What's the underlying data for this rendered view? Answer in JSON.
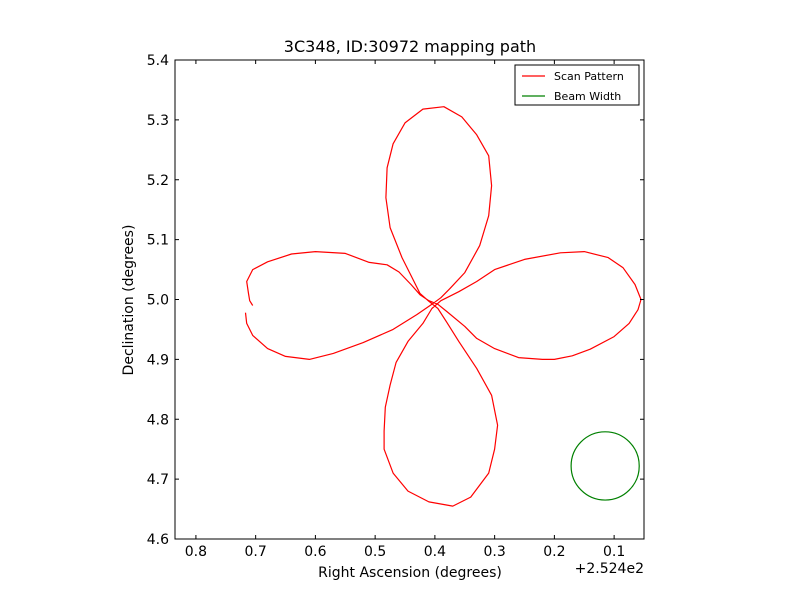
{
  "chart_data": {
    "type": "line",
    "title": "3C348, ID:30972 mapping path",
    "xlabel": "Right Ascension (degrees)",
    "ylabel": "Declination (degrees)",
    "x_offset_label": "+2.524e2",
    "xlim": [
      0.835,
      0.05
    ],
    "ylim": [
      4.6,
      5.4
    ],
    "x_ticks": [
      0.8,
      0.7,
      0.6,
      0.5,
      0.4,
      0.3,
      0.2,
      0.1
    ],
    "x_tick_labels": [
      "0.8",
      "0.7",
      "0.6",
      "0.5",
      "0.4",
      "0.3",
      "0.2",
      "0.1"
    ],
    "y_ticks": [
      4.6,
      4.7,
      4.8,
      4.9,
      5.0,
      5.1,
      5.2,
      5.3,
      5.4
    ],
    "y_tick_labels": [
      "4.6",
      "4.7",
      "4.8",
      "4.9",
      "5.0",
      "5.1",
      "5.2",
      "5.3",
      "5.4"
    ],
    "grid": false,
    "legend_position": "top-right",
    "series": [
      {
        "name": "Scan Pattern",
        "color": "#ff0000",
        "points": [
          [
            0.705,
            4.99
          ],
          [
            0.71,
            4.998
          ],
          [
            0.712,
            5.01
          ],
          [
            0.715,
            5.03
          ],
          [
            0.705,
            5.05
          ],
          [
            0.68,
            5.063
          ],
          [
            0.64,
            5.076
          ],
          [
            0.6,
            5.08
          ],
          [
            0.55,
            5.077
          ],
          [
            0.51,
            5.062
          ],
          [
            0.48,
            5.058
          ],
          [
            0.46,
            5.046
          ],
          [
            0.44,
            5.025
          ],
          [
            0.425,
            5.008
          ],
          [
            0.41,
            4.998
          ],
          [
            0.395,
            4.992
          ],
          [
            0.38,
            4.98
          ],
          [
            0.35,
            4.955
          ],
          [
            0.33,
            4.935
          ],
          [
            0.3,
            4.918
          ],
          [
            0.26,
            4.903
          ],
          [
            0.22,
            4.9
          ],
          [
            0.2,
            4.9
          ],
          [
            0.17,
            4.906
          ],
          [
            0.14,
            4.917
          ],
          [
            0.1,
            4.938
          ],
          [
            0.075,
            4.96
          ],
          [
            0.06,
            4.983
          ],
          [
            0.055,
            5.0
          ],
          [
            0.065,
            5.025
          ],
          [
            0.085,
            5.053
          ],
          [
            0.11,
            5.07
          ],
          [
            0.15,
            5.08
          ],
          [
            0.19,
            5.078
          ],
          [
            0.25,
            5.067
          ],
          [
            0.3,
            5.05
          ],
          [
            0.33,
            5.03
          ],
          [
            0.36,
            5.013
          ],
          [
            0.39,
            4.998
          ],
          [
            0.405,
            4.985
          ],
          [
            0.42,
            4.96
          ],
          [
            0.445,
            4.93
          ],
          [
            0.465,
            4.895
          ],
          [
            0.475,
            4.857
          ],
          [
            0.483,
            4.82
          ],
          [
            0.485,
            4.78
          ],
          [
            0.485,
            4.75
          ],
          [
            0.47,
            4.71
          ],
          [
            0.445,
            4.68
          ],
          [
            0.41,
            4.662
          ],
          [
            0.37,
            4.655
          ],
          [
            0.34,
            4.67
          ],
          [
            0.31,
            4.71
          ],
          [
            0.3,
            4.75
          ],
          [
            0.295,
            4.79
          ],
          [
            0.305,
            4.84
          ],
          [
            0.33,
            4.885
          ],
          [
            0.36,
            4.93
          ],
          [
            0.38,
            4.962
          ],
          [
            0.395,
            4.985
          ],
          [
            0.41,
            4.997
          ],
          [
            0.425,
            5.01
          ],
          [
            0.44,
            5.04
          ],
          [
            0.455,
            5.07
          ],
          [
            0.475,
            5.12
          ],
          [
            0.482,
            5.17
          ],
          [
            0.48,
            5.22
          ],
          [
            0.47,
            5.26
          ],
          [
            0.45,
            5.295
          ],
          [
            0.42,
            5.318
          ],
          [
            0.385,
            5.322
          ],
          [
            0.355,
            5.305
          ],
          [
            0.33,
            5.275
          ],
          [
            0.31,
            5.24
          ],
          [
            0.305,
            5.19
          ],
          [
            0.31,
            5.14
          ],
          [
            0.325,
            5.09
          ],
          [
            0.35,
            5.045
          ],
          [
            0.375,
            5.018
          ],
          [
            0.39,
            5.003
          ],
          [
            0.405,
            4.992
          ],
          [
            0.43,
            4.975
          ],
          [
            0.47,
            4.95
          ],
          [
            0.52,
            4.928
          ],
          [
            0.57,
            4.91
          ],
          [
            0.61,
            4.9
          ],
          [
            0.65,
            4.905
          ],
          [
            0.68,
            4.918
          ],
          [
            0.705,
            4.94
          ],
          [
            0.715,
            4.96
          ],
          [
            0.717,
            4.978
          ]
        ]
      },
      {
        "name": "Beam Width",
        "color": "#008000",
        "circle": {
          "center": [
            0.115,
            4.722
          ],
          "radius": 0.057
        }
      }
    ]
  }
}
